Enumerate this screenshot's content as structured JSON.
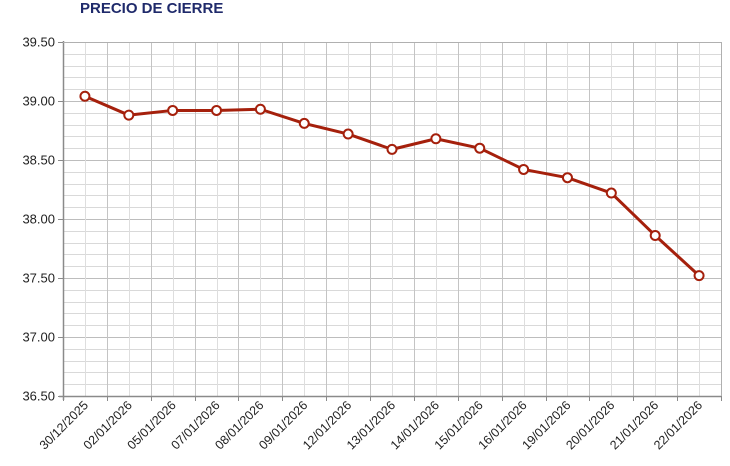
{
  "chart_data": {
    "type": "line",
    "title": "PRECIO DE CIERRE",
    "xlabel": "",
    "ylabel": "",
    "categories": [
      "30/12/2025",
      "02/01/2026",
      "05/01/2026",
      "07/01/2026",
      "08/01/2026",
      "09/01/2026",
      "12/01/2026",
      "13/01/2026",
      "14/01/2026",
      "15/01/2026",
      "16/01/2026",
      "19/01/2026",
      "20/01/2026",
      "21/01/2026",
      "22/01/2026"
    ],
    "series": [
      {
        "name": "Precio de cierre",
        "values": [
          39.04,
          38.88,
          38.92,
          38.92,
          38.93,
          38.81,
          38.72,
          38.59,
          38.68,
          38.6,
          38.42,
          38.35,
          38.22,
          37.86,
          37.52
        ]
      }
    ],
    "ylim": [
      36.5,
      39.5
    ],
    "yticks": [
      "39.50",
      "39.00",
      "38.50",
      "38.00",
      "37.50",
      "37.00",
      "36.50"
    ],
    "grid": true,
    "legend": "none",
    "colors": {
      "line": "#a5200c",
      "marker_fill": "#ffffff",
      "title": "#1f2a6b",
      "grid": "#c8c8c8",
      "axis": "#8a8a8a"
    }
  }
}
